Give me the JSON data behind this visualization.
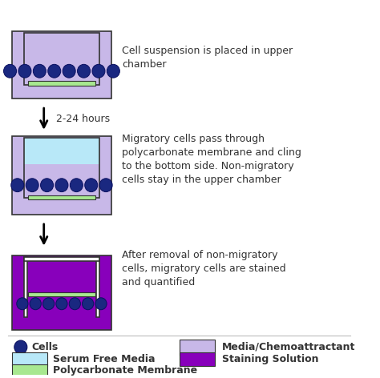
{
  "bg_color": "#ffffff",
  "lavender": "#c8b8e8",
  "light_blue": "#b8e8f8",
  "green": "#a8e890",
  "dark_blue_cell": "#1a2880",
  "purple_stain": "#8800bb",
  "outline": "#333333",
  "text_color": "#333333",
  "step1_text": "Cell suspension is placed in upper\nchamber",
  "step2_text": "Migratory cells pass through\npolycarbonate membrane and cling\nto the bottom side. Non-migratory\ncells stay in the upper chamber",
  "step3_text": "After removal of non-migratory\ncells, migratory cells are stained\nand quantified",
  "arrow_text": "2-24 hours",
  "fig_w": 4.74,
  "fig_h": 4.72,
  "dpi": 100
}
